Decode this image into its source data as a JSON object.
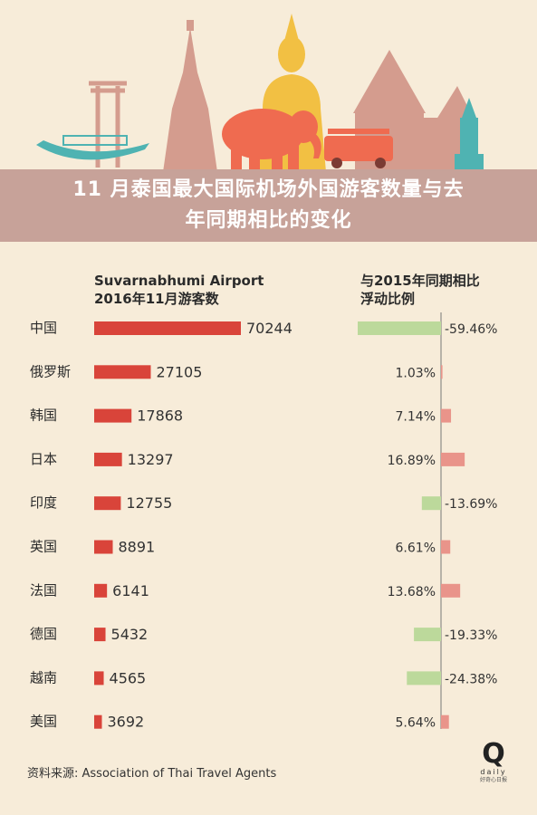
{
  "title_lines": [
    "11 月泰国最大国际机场外国游客数量与去",
    "年同期相比的变化"
  ],
  "left_header": [
    "Suvarnabhumi Airport",
    "2016年11月游客数"
  ],
  "right_header": [
    "与2015年同期相比",
    "浮动比例"
  ],
  "source": "资料来源: Association of Thai Travel Agents",
  "logo": {
    "letter": "Q",
    "word": "daily",
    "caption": "好奇心日报"
  },
  "colors": {
    "background": "#f7ecd9",
    "banner": "#c7a299",
    "visitors_bar": "#d9443a",
    "increase": "#e9948a",
    "decrease": "#bcd99b"
  },
  "chart_data": {
    "type": "bar",
    "categories": [
      "中国",
      "俄罗斯",
      "韩国",
      "日本",
      "印度",
      "英国",
      "法国",
      "德国",
      "越南",
      "美国"
    ],
    "visitors": [
      70244,
      27105,
      17868,
      13297,
      12755,
      8891,
      6141,
      5432,
      4565,
      3692
    ],
    "change_pct": [
      -59.46,
      1.03,
      7.14,
      16.89,
      -13.69,
      6.61,
      13.68,
      -19.33,
      -24.38,
      5.64
    ],
    "change_labels": [
      "-59.46%",
      "1.03%",
      "7.14%",
      "16.89%",
      "-13.69%",
      "6.61%",
      "13.68%",
      "-19.33%",
      "-24.38%",
      "5.64%"
    ]
  }
}
